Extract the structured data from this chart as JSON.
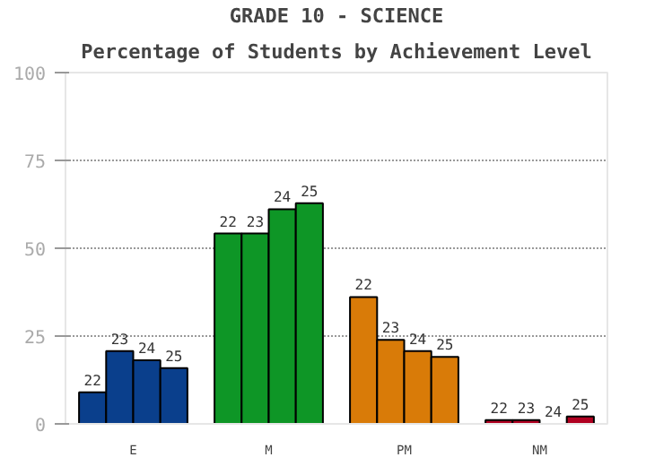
{
  "chart_data": {
    "type": "bar",
    "title": "GRADE 10 - SCIENCE",
    "subtitle": "Percentage of Students by Achievement Level",
    "categories": [
      "E",
      "M",
      "PM",
      "NM"
    ],
    "series": [
      {
        "name": "22",
        "colors": [
          "#0a3f8c",
          "#0e9626",
          "#d97b08",
          "#b00020"
        ],
        "values": [
          9,
          54.2,
          36.1,
          1.1
        ]
      },
      {
        "name": "23",
        "colors": [
          "#0a3f8c",
          "#0e9626",
          "#d97b08",
          "#b00020"
        ],
        "values": [
          20.7,
          54.2,
          23.9,
          1.1
        ]
      },
      {
        "name": "24",
        "colors": [
          "#0a3f8c",
          "#0e9626",
          "#d97b08",
          "#b00020"
        ],
        "values": [
          18.1,
          61.1,
          20.7,
          0
        ]
      },
      {
        "name": "25",
        "colors": [
          "#0a3f8c",
          "#0e9626",
          "#d97b08",
          "#b00020"
        ],
        "values": [
          15.9,
          62.8,
          19.1,
          2.1
        ]
      }
    ],
    "ylim": [
      0,
      100
    ],
    "yticks": [
      0,
      25,
      50,
      75,
      100
    ],
    "grid": "y"
  }
}
